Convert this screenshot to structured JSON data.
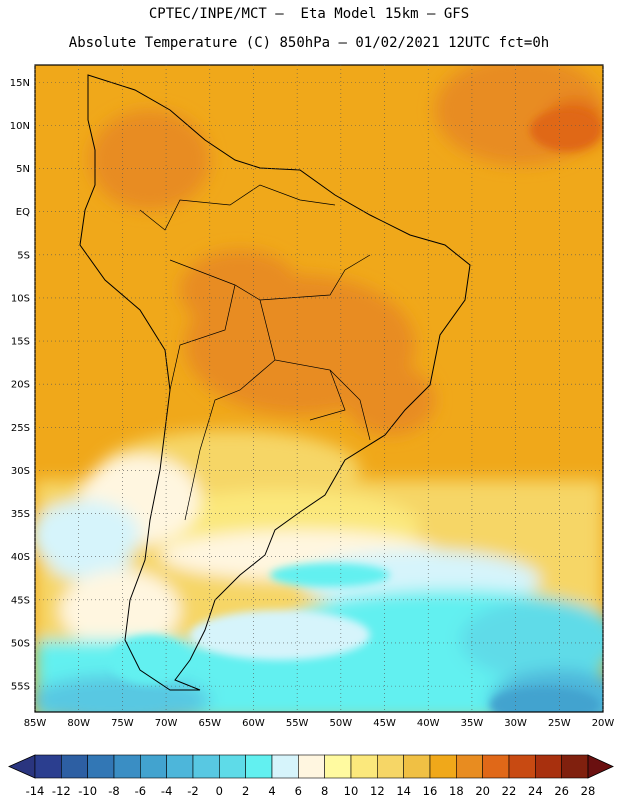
{
  "header": {
    "line1": "CPTEC/INPE/MCT –  Eta Model 15km – GFS",
    "line2": "Absolute Temperature (C) 850hPa – 01/02/2021 12UTC fct=0h"
  },
  "map": {
    "type": "filled-contour-map",
    "region": "South America and adjacent ocean",
    "lon_range": [
      -85,
      -20
    ],
    "lat_range": [
      -58,
      17
    ],
    "lat_ticks": [
      "15N",
      "10N",
      "5N",
      "EQ",
      "5S",
      "10S",
      "15S",
      "20S",
      "25S",
      "30S",
      "35S",
      "40S",
      "45S",
      "50S",
      "55S"
    ],
    "lon_ticks": [
      "85W",
      "80W",
      "75W",
      "70W",
      "65W",
      "60W",
      "55W",
      "50W",
      "45W",
      "40W",
      "35W",
      "30W",
      "25W",
      "20W"
    ],
    "grid": "dotted"
  },
  "colorbar": {
    "labels": [
      "-14",
      "-12",
      "-10",
      "-8",
      "-6",
      "-4",
      "-2",
      "0",
      "2",
      "4",
      "6",
      "8",
      "10",
      "12",
      "14",
      "16",
      "18",
      "20",
      "22",
      "24",
      "26",
      "28"
    ],
    "colors": [
      "#2b3e8f",
      "#2d5fa3",
      "#3277b5",
      "#3a8ec4",
      "#42a3cf",
      "#4db6da",
      "#58c8e2",
      "#5edbe8",
      "#62f0f0",
      "#d6f4fb",
      "#fff6e0",
      "#fffaa0",
      "#fbe87c",
      "#f6d666",
      "#f0c044",
      "#f0a81a",
      "#e88c20",
      "#e06818",
      "#c84a12",
      "#a8300e",
      "#80200e"
    ],
    "under_color": "#2a357f",
    "over_color": "#6a1010"
  }
}
